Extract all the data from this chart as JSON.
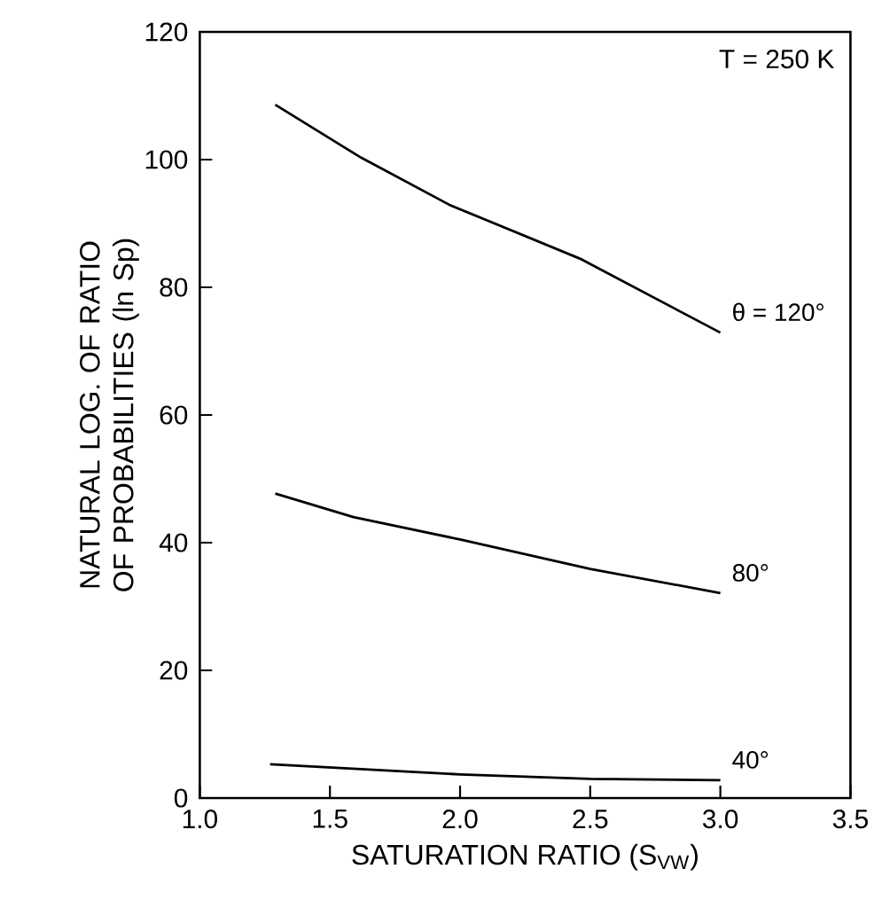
{
  "chart_data": {
    "type": "line",
    "xlabel": "SATURATION RATIO (S$_{VW}$)",
    "ylabel": "NATURAL LOG. OF RATIO OF PROBABILITIES (ln Sp)",
    "series": [
      {
        "name": "θ = 120°",
        "color": "#000000",
        "x": [
          1.29,
          1.62,
          1.96,
          2.46,
          3.0
        ],
        "values": [
          108.6,
          100.3,
          92.9,
          84.5,
          72.9
        ]
      },
      {
        "name": "80°",
        "color": "#000000",
        "x": [
          1.29,
          1.59,
          2.0,
          2.5,
          3.0
        ],
        "values": [
          47.7,
          44,
          40.5,
          35.9,
          32.1
        ]
      },
      {
        "name": "40°",
        "color": "#000000",
        "x": [
          1.27,
          2.0,
          2.5,
          3.0
        ],
        "values": [
          5.3,
          3.7,
          3.0,
          2.8
        ]
      }
    ],
    "annotations": [
      "T = 250 K"
    ],
    "xlim": [
      1.0,
      3.5
    ],
    "ylim": [
      0,
      120
    ],
    "xticks": [
      {
        "value": 1.0,
        "label": "1.0"
      },
      {
        "value": 1.5,
        "label": "1.5"
      },
      {
        "value": 2.0,
        "label": "2.0"
      },
      {
        "value": 2.5,
        "label": "2.5"
      },
      {
        "value": 3.0,
        "label": "3.0"
      },
      {
        "value": 3.5,
        "label": "3.5"
      }
    ],
    "yticks": [
      0,
      20,
      40,
      60,
      80,
      100,
      120
    ],
    "grid": false,
    "legend": false,
    "marker": "none",
    "line_style": "solid"
  }
}
